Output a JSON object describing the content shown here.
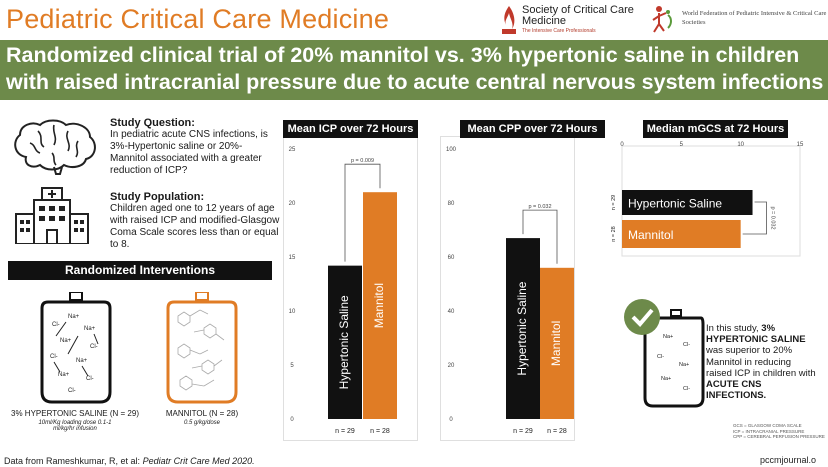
{
  "header": {
    "journal": "Pediatric Critical Care Medicine",
    "sccm_name": "Society of Critical Care Medicine",
    "sccm_tagline": "The Intensive Care Professionals",
    "wfpiccs_name": "World Federation of Pediatric Intensive & Critical Care Societies"
  },
  "banner": {
    "line1": "Randomized clinical trial of 20% mannitol vs. 3% hypertonic saline in children",
    "line2": "with raised intracranial pressure due to acute central nervous system infections"
  },
  "study": {
    "question_head": "Study Question:",
    "question_body": "In pediatric acute CNS infections, is 3%-Hypertonic saline or 20%-Mannitol associated with a greater reduction of ICP?",
    "population_head": "Study Population:",
    "population_body": "Children aged one to 12 years of age with raised ICP and modified-Glasgow Coma Scale scores less than or equal to 8."
  },
  "interventions": {
    "title": "Randomized Interventions",
    "hs_caption": "3% HYPERTONIC SALINE (N = 29)",
    "hs_dose": "10ml/Kg loading dose 0.1-1 ml/kg/hr infusion",
    "man_caption": "MANNITOL (N = 28)",
    "man_dose": "0.5 g/kg/dose",
    "ion_na": "Na+",
    "ion_cl": "Cl-"
  },
  "colors": {
    "orange": "#e07c25",
    "black": "#111111",
    "green": "#6d8a4a"
  },
  "chart_data": [
    {
      "type": "bar",
      "title": "Mean ICP over 72 Hours",
      "categories": [
        "Hypertonic Saline",
        "Mannitol"
      ],
      "values": [
        14.2,
        21.0
      ],
      "n_labels": [
        "n = 29",
        "n = 28"
      ],
      "ylim": [
        0,
        25
      ],
      "ticks": [
        0,
        5,
        10,
        15,
        20,
        25
      ],
      "pvalue": "p = 0.009"
    },
    {
      "type": "bar",
      "title": "Mean CPP over 72 Hours",
      "categories": [
        "Hypertonic Saline",
        "Mannitol"
      ],
      "values": [
        67,
        56
      ],
      "n_labels": [
        "n = 29",
        "n = 28"
      ],
      "ylim": [
        0,
        100
      ],
      "ticks": [
        0,
        20,
        40,
        60,
        80,
        100
      ],
      "pvalue": "p = 0.032"
    },
    {
      "type": "bar",
      "title": "Median mGCS at 72 Hours",
      "orientation": "horizontal",
      "categories": [
        "Hypertonic Saline",
        "Mannitol"
      ],
      "values": [
        11,
        10
      ],
      "n_labels": [
        "n = 29",
        "n = 28"
      ],
      "xlim": [
        0,
        15
      ],
      "ticks": [
        0,
        5,
        10,
        15
      ],
      "pvalue": "p = 0.032"
    }
  ],
  "conclusion": {
    "pre": "In this study,",
    "hs": "3% HYPERTONIC SALINE",
    "mid": "was superior to 20% Mannitol in reducing raised ICP in children with",
    "acute": "ACUTE CNS INFECTIONS."
  },
  "abbreviations": [
    "GCS = GLASGOW COMA SCALE",
    "ICP = INTRACRANIAL PRESSURE",
    "CPP = CEREBRAL PERFUSION PRESSURE"
  ],
  "footer": {
    "cite_pre": "Data from Rameshkumar, R, et al:",
    "cite_journal": "Pediatr Crit Care Med 2020.",
    "url": "pccmjournal.o"
  }
}
